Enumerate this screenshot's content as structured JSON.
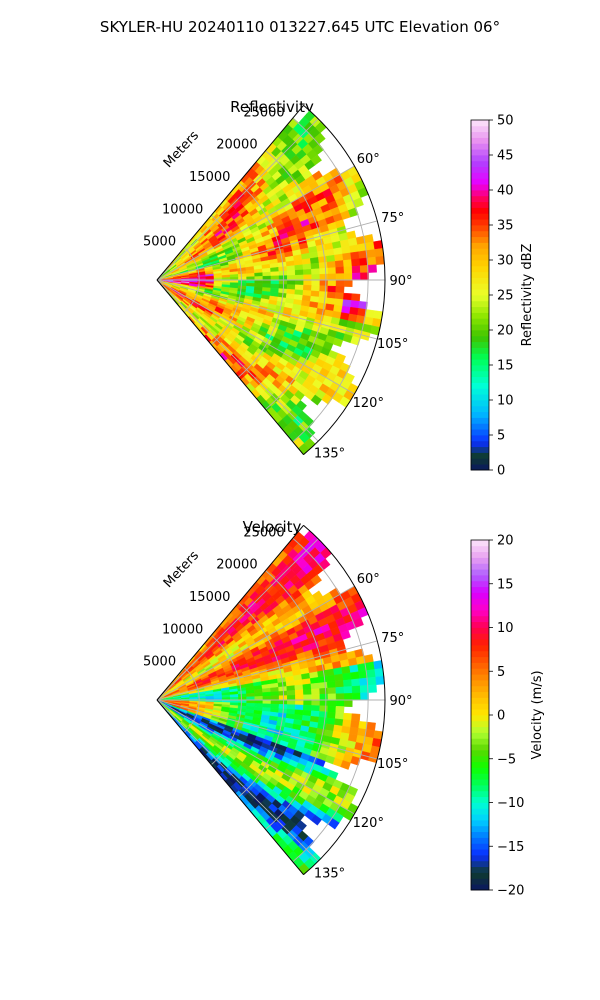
{
  "figure": {
    "suptitle": "SKYLER-HU  20240110  013227.645 UTC Elevation 06°"
  },
  "chart_data": [
    {
      "type": "heatmap",
      "projection": "polar-sector",
      "title": "Reflectivity",
      "field": "reflectivity",
      "range_label": "Meters",
      "range_ticks": [
        "5000",
        "10000",
        "15000",
        "20000",
        "25000"
      ],
      "range_max": 27000,
      "azimuth_range": [
        40,
        140
      ],
      "azimuth_ticks": [
        "60°",
        "75°",
        "90°",
        "105°",
        "120°",
        "135°"
      ],
      "colorbar": {
        "label": "Reflectivity dBZ",
        "min": 0,
        "max": 50,
        "ticks": [
          "0",
          "5",
          "10",
          "15",
          "20",
          "25",
          "30",
          "35",
          "40",
          "45",
          "50"
        ]
      },
      "colormap": [
        [
          0,
          "#0a1760"
        ],
        [
          2,
          "#0f3b2e"
        ],
        [
          4,
          "#0a2fff"
        ],
        [
          8,
          "#00b6ff"
        ],
        [
          12,
          "#00ffd8"
        ],
        [
          16,
          "#00ff55"
        ],
        [
          19,
          "#3ec400"
        ],
        [
          22,
          "#8ee600"
        ],
        [
          25,
          "#eaff2a"
        ],
        [
          29,
          "#ffd400"
        ],
        [
          32,
          "#ffa500"
        ],
        [
          35,
          "#ff3a00"
        ],
        [
          37,
          "#ff0000"
        ],
        [
          39,
          "#ff0066"
        ],
        [
          41,
          "#e800ff"
        ],
        [
          44,
          "#b040ff"
        ],
        [
          47,
          "#e890f0"
        ],
        [
          50,
          "#fde6fb"
        ]
      ],
      "grid": true,
      "colorbar_ticks": [
        0,
        5,
        10,
        15,
        20,
        25,
        30,
        35,
        40,
        45,
        50
      ]
    },
    {
      "type": "heatmap",
      "projection": "polar-sector",
      "title": "Velocity",
      "field": "velocity",
      "range_label": "Meters",
      "range_ticks": [
        "5000",
        "10000",
        "15000",
        "20000",
        "25000"
      ],
      "range_max": 27000,
      "azimuth_range": [
        40,
        140
      ],
      "azimuth_ticks": [
        "60°",
        "75°",
        "90°",
        "105°",
        "120°",
        "135°"
      ],
      "colorbar": {
        "label": "Velocity (m/s)",
        "min": -20,
        "max": 20,
        "ticks": [
          "−20",
          "−15",
          "−10",
          "−5",
          "0",
          "5",
          "10",
          "15",
          "20"
        ]
      },
      "colormap": [
        [
          -20,
          "#0a1760"
        ],
        [
          -18,
          "#0f3b2e"
        ],
        [
          -16,
          "#0a2fff"
        ],
        [
          -14,
          "#0078ff"
        ],
        [
          -12,
          "#00d0ff"
        ],
        [
          -10,
          "#00ffd0"
        ],
        [
          -8,
          "#00ff5a"
        ],
        [
          -6,
          "#10ff00"
        ],
        [
          -4,
          "#58d800"
        ],
        [
          -2,
          "#b0ff30"
        ],
        [
          0,
          "#ffe800"
        ],
        [
          2,
          "#ffc000"
        ],
        [
          4,
          "#ff9000"
        ],
        [
          6,
          "#ff5a00"
        ],
        [
          8,
          "#ff2000"
        ],
        [
          10,
          "#ff0050"
        ],
        [
          12,
          "#ff00c8"
        ],
        [
          14,
          "#d800ff"
        ],
        [
          16,
          "#b060ff"
        ],
        [
          18,
          "#e8a0f0"
        ],
        [
          20,
          "#fde6fb"
        ]
      ],
      "grid": true,
      "colorbar_ticks": [
        -20,
        -15,
        -10,
        -5,
        0,
        5,
        10,
        15,
        20
      ]
    }
  ]
}
